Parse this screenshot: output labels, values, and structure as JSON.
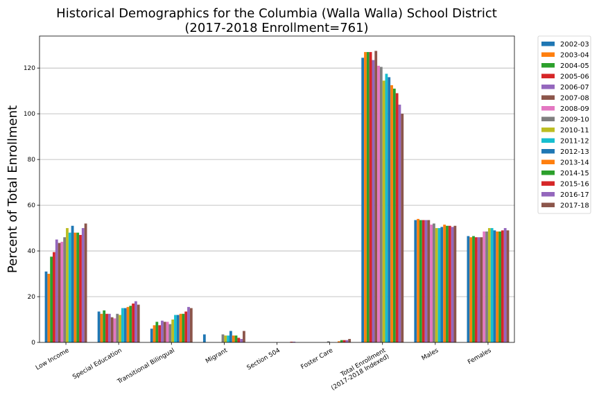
{
  "chart_data": {
    "type": "bar",
    "title_lines": [
      "Historical Demographics for the Columbia (Walla Walla) School District",
      "(2017-2018 Enrollment=761)"
    ],
    "xlabel": "",
    "ylabel": "Percent of Total Enrollment",
    "ylim": [
      0,
      134
    ],
    "yticks": [
      0,
      20,
      40,
      60,
      80,
      100,
      120
    ],
    "grid": "y-axis horizontal lines",
    "legend_position": "outside right, top",
    "categories": [
      [
        "Low Income"
      ],
      [
        "Special Education"
      ],
      [
        "Transitional Bilingual"
      ],
      [
        "Migrant"
      ],
      [
        "Section 504"
      ],
      [
        "Foster Care"
      ],
      [
        "Total Enrollment",
        "(2017-2018 Indexed)"
      ],
      [
        "Males"
      ],
      [
        "Females"
      ]
    ],
    "series": [
      {
        "name": "2002-03",
        "color": "#1f77b4",
        "values": [
          31,
          13.5,
          6,
          3.5,
          0,
          0,
          124.5,
          53.5,
          46.5
        ]
      },
      {
        "name": "2003-04",
        "color": "#ff7f0e",
        "values": [
          30,
          12.5,
          7.5,
          0,
          0,
          0,
          127,
          54,
          46
        ]
      },
      {
        "name": "2004-05",
        "color": "#2ca02c",
        "values": [
          37.5,
          14,
          9,
          0,
          0,
          0,
          127,
          53.5,
          46.5
        ]
      },
      {
        "name": "2005-06",
        "color": "#d62728",
        "values": [
          39.5,
          12.5,
          7.5,
          0,
          0,
          0,
          127,
          53.5,
          46
        ]
      },
      {
        "name": "2006-07",
        "color": "#9467bd",
        "values": [
          45,
          12.5,
          9.5,
          0,
          0,
          0,
          123.5,
          53.5,
          46
        ]
      },
      {
        "name": "2007-08",
        "color": "#8c564b",
        "values": [
          43.5,
          11,
          9,
          0,
          0,
          0,
          127.5,
          53.5,
          46
        ]
      },
      {
        "name": "2008-09",
        "color": "#e377c2",
        "values": [
          44,
          10.5,
          9,
          0,
          0,
          0,
          121,
          51.5,
          48.5
        ]
      },
      {
        "name": "2009-10",
        "color": "#7f7f7f",
        "values": [
          46,
          12.5,
          8,
          3.5,
          0,
          0.5,
          120.5,
          52,
          48.5
        ]
      },
      {
        "name": "2010-11",
        "color": "#bcbd22",
        "values": [
          50,
          12,
          10,
          3,
          0,
          0,
          114.5,
          50,
          50
        ]
      },
      {
        "name": "2011-12",
        "color": "#17becf",
        "values": [
          48,
          15,
          12,
          3,
          0,
          0,
          117.5,
          50,
          50
        ]
      },
      {
        "name": "2012-13",
        "color": "#1f77b4",
        "values": [
          51,
          15,
          12,
          5,
          0,
          0,
          116,
          50.5,
          49
        ]
      },
      {
        "name": "2013-14",
        "color": "#ff7f0e",
        "values": [
          48,
          15.5,
          12.5,
          3,
          0,
          0.5,
          112.5,
          51.5,
          48.5
        ]
      },
      {
        "name": "2014-15",
        "color": "#2ca02c",
        "values": [
          48,
          16,
          12.5,
          3,
          0,
          1,
          111,
          51,
          48.5
        ]
      },
      {
        "name": "2015-16",
        "color": "#d62728",
        "values": [
          47,
          17,
          13.5,
          2,
          0.3,
          1,
          109,
          51,
          49
        ]
      },
      {
        "name": "2016-17",
        "color": "#9467bd",
        "values": [
          50,
          18,
          15.5,
          1.5,
          0.3,
          1,
          104,
          50.5,
          50
        ]
      },
      {
        "name": "2017-18",
        "color": "#8c564b",
        "values": [
          52,
          16.5,
          15,
          5,
          0,
          1.5,
          100,
          51,
          49
        ]
      }
    ]
  }
}
